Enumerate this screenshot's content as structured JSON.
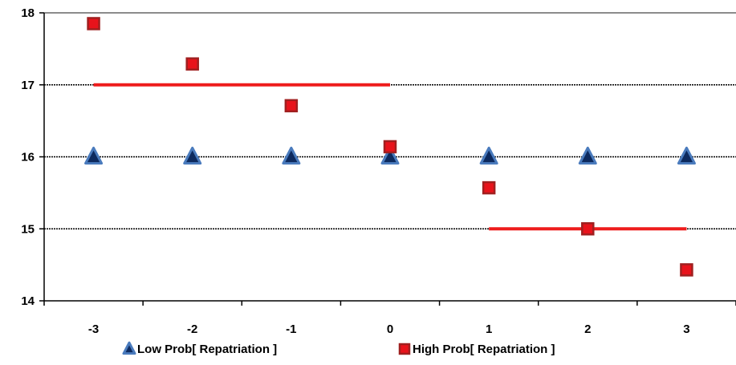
{
  "chart_data": {
    "type": "scatter",
    "title": "",
    "xlabel": "",
    "ylabel": "",
    "xlim": [
      -3.5,
      3.5
    ],
    "ylim": [
      14,
      18
    ],
    "x_ticks": [
      -3,
      -2,
      -1,
      0,
      1,
      2,
      3
    ],
    "y_ticks": [
      14,
      15,
      16,
      17,
      18
    ],
    "grid": "horizontal",
    "legend_position": "bottom",
    "series": [
      {
        "name": "Low Prob[ Repatriation ]",
        "marker": "triangle",
        "fill": "#0d2a5e",
        "edge": "#4a7bbd",
        "points": [
          {
            "x": -3,
            "y": 16.0
          },
          {
            "x": -2,
            "y": 16.0
          },
          {
            "x": -1,
            "y": 16.0
          },
          {
            "x": 0,
            "y": 16.0
          },
          {
            "x": 1,
            "y": 16.0
          },
          {
            "x": 2,
            "y": 16.0
          },
          {
            "x": 3,
            "y": 16.0
          }
        ]
      },
      {
        "name": "High Prob[ Repatriation ]",
        "marker": "square",
        "fill": "#e8131b",
        "edge": "#a02020",
        "points": [
          {
            "x": -3,
            "y": 17.85
          },
          {
            "x": -2,
            "y": 17.29
          },
          {
            "x": -1,
            "y": 16.71
          },
          {
            "x": 0,
            "y": 16.14
          },
          {
            "x": 1,
            "y": 15.57
          },
          {
            "x": 2,
            "y": 15.0
          },
          {
            "x": 3,
            "y": 14.43
          }
        ]
      }
    ],
    "reference_lines": [
      {
        "x_start": -3,
        "x_end": 0,
        "y": 17,
        "color": "#ee1c1c"
      },
      {
        "x_start": 1,
        "x_end": 3,
        "y": 15,
        "color": "#ee1c1c"
      }
    ]
  }
}
